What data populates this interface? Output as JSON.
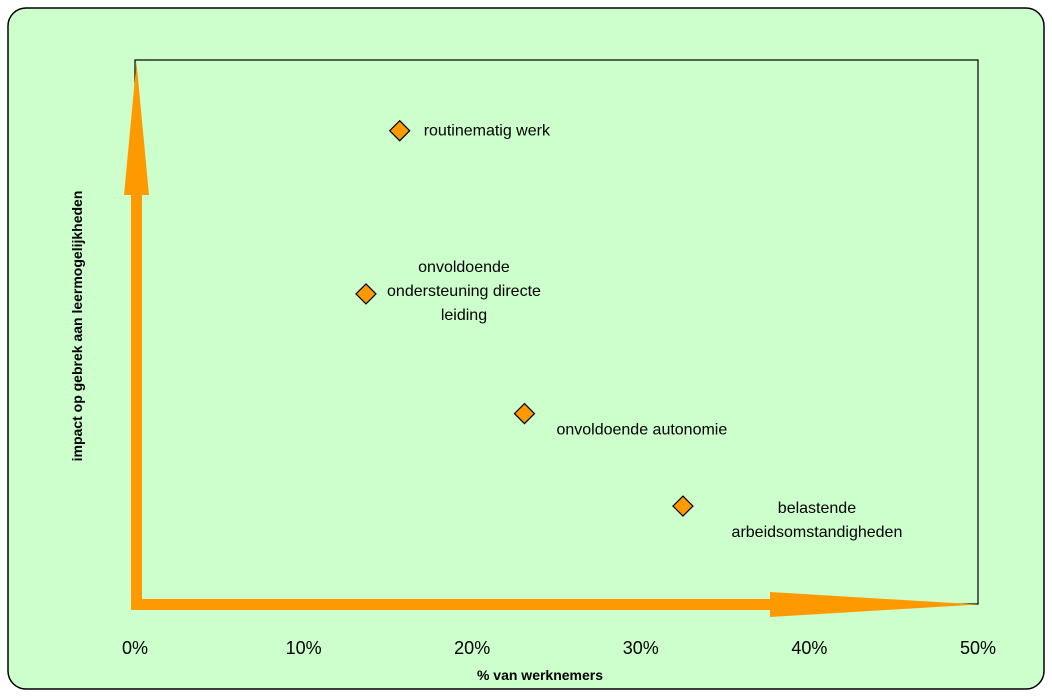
{
  "chart_data": {
    "type": "scatter",
    "title": "",
    "xlabel": "% van werknemers",
    "ylabel": "impact op gebrek aan leermogelijkheden",
    "xlim": [
      0,
      0.5
    ],
    "x_ticks": [
      "0%",
      "10%",
      "20%",
      "30%",
      "40%",
      "50%"
    ],
    "y_tick_labels_shown": false,
    "grid": false,
    "legend": "none",
    "colors": {
      "background": "#ccffcc",
      "plot_border": "#000000",
      "marker_fill": "#ff9900",
      "marker_stroke": "#000000",
      "axis_arrow": "#ff9900"
    },
    "points": [
      {
        "label": [
          "routinematig werk"
        ],
        "x": 0.157,
        "y": 0.87
      },
      {
        "label": [
          "onvoldoende",
          "ondersteuning directe",
          "leiding"
        ],
        "x": 0.137,
        "y": 0.57
      },
      {
        "label": [
          "onvoldoende autonomie"
        ],
        "x": 0.231,
        "y": 0.35
      },
      {
        "label": [
          "belastende",
          "arbeidsomstandigheden"
        ],
        "x": 0.325,
        "y": 0.18
      }
    ]
  }
}
